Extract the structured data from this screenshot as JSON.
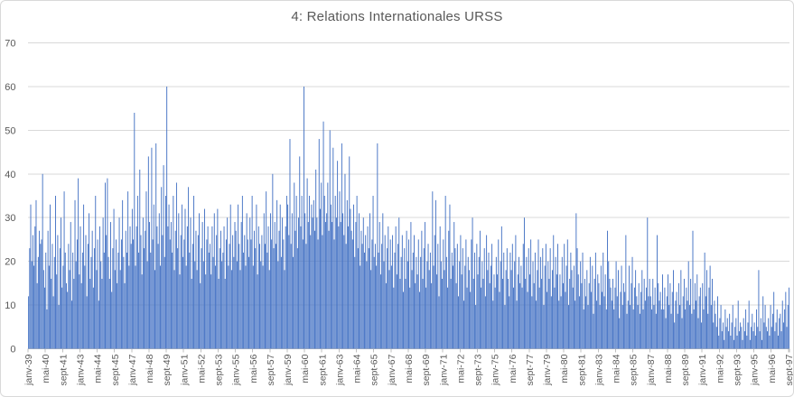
{
  "chart_data": {
    "type": "bar",
    "title": "4: Relations Internationales URSS",
    "xlabel": "",
    "ylabel": "",
    "ylim": [
      0,
      70
    ],
    "yticks": [
      0,
      10,
      20,
      30,
      40,
      50,
      60,
      70
    ],
    "grid": true,
    "legend": "none",
    "x_unit": "month",
    "x_start": "janv-39",
    "x_end": "sept-97",
    "label_every": 16,
    "x_tick_labels": [
      "janv-39",
      "mai-40",
      "sept-41",
      "janv-43",
      "mai-44",
      "sept-45",
      "janv-47",
      "mai-48",
      "sept-49",
      "janv-51",
      "mai-52",
      "sept-53",
      "janv-55",
      "mai-56",
      "sept-57",
      "janv-59",
      "mai-60",
      "sept-61",
      "janv-63",
      "mai-64",
      "sept-65",
      "janv-67",
      "mai-68",
      "sept-69",
      "janv-71",
      "mai-72",
      "sept-73",
      "janv-75",
      "mai-76",
      "sept-77",
      "janv-79",
      "mai-80",
      "sept-81",
      "janv-83",
      "mai-84",
      "sept-85",
      "janv-87",
      "mai-88",
      "sept-89",
      "janv-91",
      "mai-92",
      "sept-93",
      "janv-95",
      "mai-96",
      "sept-97"
    ],
    "values": [
      12,
      23,
      33,
      20,
      26,
      19,
      28,
      34,
      15,
      21,
      27,
      24,
      25,
      40,
      18,
      14,
      22,
      9,
      27,
      19,
      33,
      16,
      24,
      12,
      21,
      35,
      17,
      26,
      10,
      23,
      30,
      14,
      19,
      36,
      22,
      15,
      13,
      24,
      18,
      29,
      11,
      22,
      16,
      34,
      20,
      25,
      39,
      17,
      28,
      15,
      22,
      33,
      19,
      26,
      12,
      24,
      31,
      16,
      21,
      27,
      14,
      23,
      35,
      18,
      25,
      11,
      28,
      20,
      16,
      30,
      22,
      38,
      26,
      39,
      21,
      16,
      29,
      13,
      23,
      32,
      18,
      25,
      15,
      22,
      30,
      18,
      25,
      34,
      21,
      15,
      27,
      22,
      36,
      19,
      28,
      24,
      32,
      25,
      54,
      19,
      28,
      35,
      22,
      41,
      26,
      17,
      30,
      23,
      27,
      36,
      20,
      44,
      29,
      22,
      46,
      25,
      33,
      18,
      47,
      28,
      24,
      31,
      19,
      37,
      26,
      42,
      21,
      35,
      60,
      28,
      33,
      25,
      29,
      22,
      35,
      18,
      27,
      38,
      23,
      31,
      17,
      26,
      33,
      21,
      25,
      32,
      19,
      28,
      37,
      22,
      30,
      16,
      24,
      35,
      20,
      27,
      18,
      26,
      31,
      15,
      23,
      29,
      20,
      32,
      17,
      25,
      28,
      22,
      24,
      17,
      28,
      21,
      31,
      19,
      26,
      32,
      16,
      23,
      27,
      20,
      22,
      28,
      16,
      25,
      30,
      19,
      24,
      33,
      18,
      26,
      21,
      29,
      27,
      20,
      33,
      24,
      18,
      29,
      35,
      22,
      26,
      19,
      31,
      25,
      21,
      30,
      25,
      35,
      19,
      27,
      23,
      33,
      17,
      28,
      24,
      20,
      26,
      19,
      31,
      24,
      36,
      22,
      28,
      18,
      31,
      25,
      40,
      23,
      29,
      24,
      34,
      20,
      27,
      33,
      21,
      30,
      25,
      18,
      28,
      35,
      33,
      26,
      48,
      24,
      31,
      21,
      38,
      27,
      35,
      23,
      30,
      44,
      28,
      35,
      25,
      60,
      31,
      24,
      39,
      29,
      35,
      26,
      33,
      30,
      34,
      27,
      41,
      30,
      25,
      48,
      32,
      38,
      26,
      52,
      35,
      29,
      31,
      38,
      27,
      50,
      33,
      29,
      46,
      25,
      35,
      30,
      43,
      28,
      36,
      29,
      47,
      31,
      26,
      40,
      24,
      34,
      28,
      44,
      32,
      27,
      25,
      33,
      21,
      29,
      35,
      23,
      31,
      19,
      27,
      24,
      30,
      22,
      26,
      20,
      28,
      23,
      31,
      18,
      25,
      35,
      21,
      24,
      19,
      47,
      22,
      29,
      17,
      24,
      31,
      20,
      26,
      15,
      23,
      28,
      18,
      25,
      19,
      26,
      14,
      22,
      28,
      17,
      24,
      30,
      16,
      21,
      26,
      13,
      23,
      16,
      27,
      20,
      25,
      14,
      29,
      18,
      22,
      26,
      15,
      21,
      17,
      25,
      13,
      21,
      27,
      16,
      23,
      29,
      14,
      20,
      24,
      18,
      22,
      15,
      36,
      19,
      26,
      34,
      17,
      24,
      12,
      28,
      20,
      16,
      25,
      18,
      35,
      21,
      14,
      27,
      33,
      16,
      22,
      19,
      29,
      23,
      15,
      24,
      12,
      20,
      26,
      17,
      23,
      11,
      19,
      25,
      14,
      21,
      18,
      13,
      25,
      30,
      16,
      22,
      10,
      24,
      17,
      21,
      27,
      14,
      20,
      16,
      23,
      12,
      26,
      18,
      22,
      15,
      19,
      24,
      11,
      17,
      14,
      21,
      17,
      25,
      13,
      20,
      28,
      16,
      22,
      10,
      18,
      23,
      16,
      12,
      22,
      18,
      24,
      14,
      20,
      26,
      11,
      17,
      21,
      15,
      19,
      14,
      24,
      30,
      16,
      21,
      13,
      23,
      17,
      25,
      12,
      20,
      15,
      22,
      11,
      18,
      25,
      14,
      21,
      16,
      23,
      10,
      19,
      24,
      13,
      20,
      16,
      23,
      12,
      18,
      26,
      14,
      21,
      17,
      24,
      11,
      17,
      12,
      21,
      15,
      24,
      13,
      19,
      25,
      10,
      16,
      22,
      18,
      14,
      19,
      11,
      31,
      23,
      17,
      12,
      20,
      15,
      22,
      9,
      16,
      12,
      18,
      10,
      15,
      21,
      13,
      19,
      8,
      16,
      22,
      11,
      17,
      15,
      10,
      19,
      13,
      22,
      12,
      17,
      9,
      27,
      20,
      16,
      14,
      11,
      16,
      9,
      14,
      20,
      12,
      18,
      7,
      13,
      19,
      10,
      15,
      13,
      26,
      8,
      11,
      19,
      10,
      15,
      21,
      9,
      14,
      18,
      12,
      10,
      15,
      8,
      13,
      18,
      9,
      16,
      11,
      14,
      30,
      12,
      16,
      12,
      9,
      16,
      10,
      14,
      8,
      26,
      15,
      11,
      13,
      9,
      17,
      9,
      14,
      7,
      12,
      17,
      10,
      15,
      8,
      13,
      18,
      6,
      11,
      13,
      8,
      15,
      10,
      18,
      7,
      12,
      16,
      9,
      14,
      11,
      20,
      10,
      16,
      8,
      27,
      9,
      15,
      11,
      17,
      7,
      12,
      14,
      6,
      15,
      9,
      22,
      12,
      18,
      8,
      14,
      19,
      10,
      16,
      6,
      11,
      8,
      5,
      12,
      3,
      7,
      10,
      4,
      6,
      2,
      9,
      5,
      7,
      4,
      8,
      3,
      6,
      10,
      2,
      5,
      7,
      3,
      11,
      4,
      6,
      5,
      2,
      7,
      4,
      9,
      3,
      6,
      11,
      2,
      5,
      8,
      4,
      6,
      3,
      9,
      5,
      18,
      4,
      7,
      2,
      12,
      6,
      10,
      5,
      4,
      7,
      3,
      10,
      5,
      8,
      13,
      4,
      6,
      9,
      3,
      7,
      8,
      4,
      11,
      6,
      9,
      13,
      5,
      10,
      14
    ],
    "colors": {
      "bar": "#4472C4",
      "gridline": "#D9D9D9",
      "axis": "#BFBFBF",
      "tick": "#BFBFBF",
      "text": "#595959",
      "border": "#D9D9D9",
      "background": "#FFFFFF"
    }
  }
}
